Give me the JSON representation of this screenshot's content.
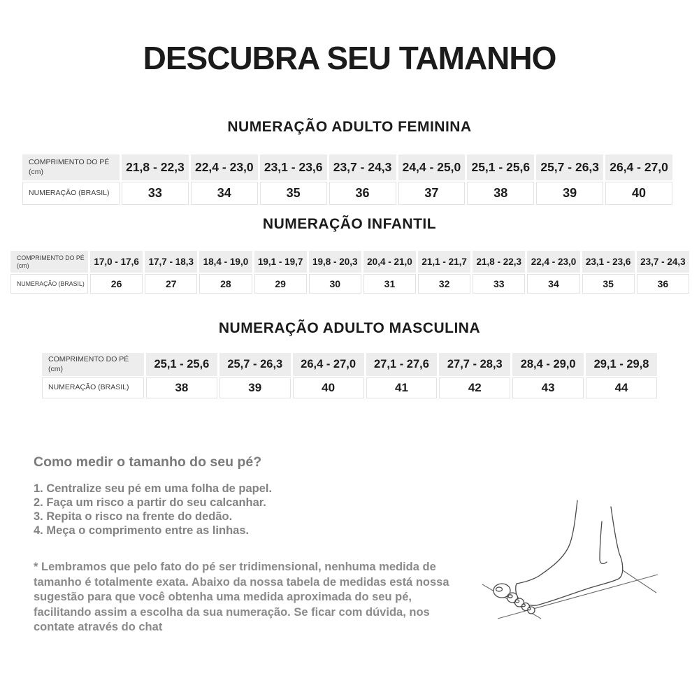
{
  "page_title": "DESCUBRA SEU TAMANHO",
  "tables": [
    {
      "id": "feminina",
      "section_title": "NUMERAÇÃO ADULTO FEMININA",
      "row_label_length": "COMPRIMENTO DO PÉ (cm)",
      "row_label_size": "NUMERAÇÃO (BRASIL)",
      "ranges": [
        "21,8 - 22,3",
        "22,4 - 23,0",
        "23,1 - 23,6",
        "23,7 - 24,3",
        "24,4 - 25,0",
        "25,1 - 25,6",
        "25,7 - 26,3",
        "26,4 - 27,0"
      ],
      "sizes": [
        "33",
        "34",
        "35",
        "36",
        "37",
        "38",
        "39",
        "40"
      ]
    },
    {
      "id": "infantil",
      "section_title": "NUMERAÇÃO INFANTIL",
      "row_label_length": "COMPRIMENTO DO PÉ (cm)",
      "row_label_size": "NUMERAÇÃO (BRASIL)",
      "ranges": [
        "17,0 - 17,6",
        "17,7 - 18,3",
        "18,4 - 19,0",
        "19,1 - 19,7",
        "19,8 - 20,3",
        "20,4 - 21,0",
        "21,1 - 21,7",
        "21,8 - 22,3",
        "22,4 - 23,0",
        "23,1 - 23,6",
        "23,7 - 24,3"
      ],
      "sizes": [
        "26",
        "27",
        "28",
        "29",
        "30",
        "31",
        "32",
        "33",
        "34",
        "35",
        "36"
      ]
    },
    {
      "id": "masculina",
      "section_title": "NUMERAÇÃO ADULTO MASCULINA",
      "row_label_length": "COMPRIMENTO DO PÉ (cm)",
      "row_label_size": "NUMERAÇÃO (BRASIL)",
      "ranges": [
        "25,1 - 25,6",
        "25,7 - 26,3",
        "26,4 - 27,0",
        "27,1 - 27,6",
        "27,7 - 28,3",
        "28,4 - 29,0",
        "29,1 - 29,8"
      ],
      "sizes": [
        "38",
        "39",
        "40",
        "41",
        "42",
        "43",
        "44"
      ]
    }
  ],
  "how_to": {
    "title": "Como medir o tamanho do seu pé?",
    "steps": [
      "1. Centralize seu pé em uma folha de papel.",
      "2. Faça um risco a partir do seu calcanhar.",
      "3. Repita o risco na frente do dedão.",
      "4. Meça o comprimento entre as linhas."
    ]
  },
  "note": "* Lembramos que pelo fato do pé ser tridimensional, nenhuma medida de tamanho é totalmente exata. Abaixo da nossa tabela de medidas está nossa sugestão para que você obtenha uma medida aproximada do seu pé, facilitando assim a escolha da sua numeração. Se ficar com dúvida, nos contate através do chat",
  "illustration": "foot-line-drawing-with-measurement-lines",
  "colors": {
    "heading_text": "#1b1b1b",
    "table_header_bg": "#ededed",
    "table_body_border": "#e2e2e2",
    "gray_text": "#8a8a8a"
  }
}
